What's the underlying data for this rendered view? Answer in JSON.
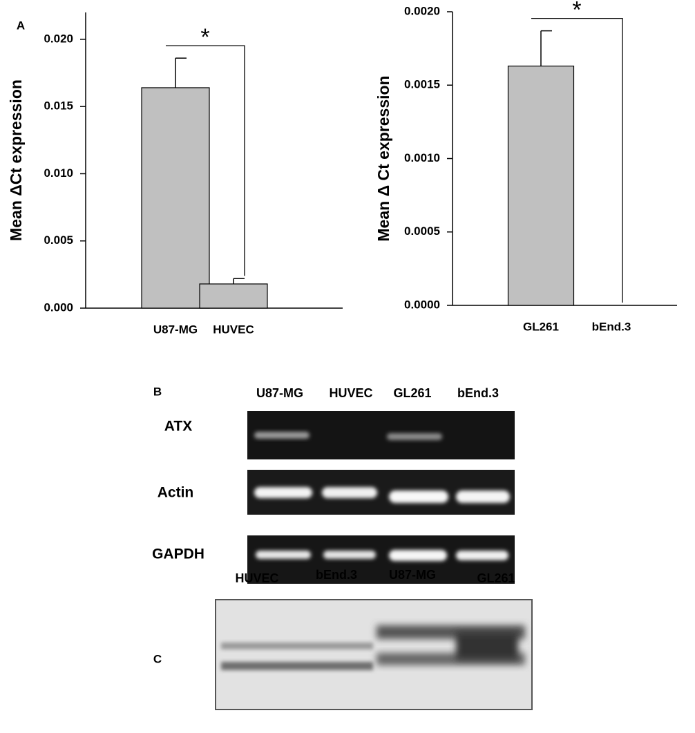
{
  "panel_labels": [
    "A",
    "B",
    "C"
  ],
  "chart_data": [
    {
      "type": "bar",
      "categories": [
        "U87-MG",
        "HUVEC"
      ],
      "values": [
        0.0164,
        0.0018
      ],
      "errors": [
        0.0022,
        0.0004
      ],
      "color": "#c0c0c0",
      "y_label": "Mean ΔCt expression",
      "annotation": "*",
      "ylim": [
        0,
        0.022
      ],
      "yticks": [
        {
          "value": 0,
          "label": "0.000"
        },
        0.005,
        {
          "value": 0.01,
          "label": "0.010"
        },
        0.015,
        {
          "value": 0.02,
          "label": "0.020"
        }
      ]
    },
    {
      "type": "bar",
      "categories": [
        "GL261",
        "bEnd.3"
      ],
      "values": [
        0.00163,
        0
      ],
      "errors": [
        0.00024,
        null
      ],
      "color": "#c0c0c0",
      "y_label": "Mean Δ Ct expression",
      "annotation": "*",
      "ylim": [
        0,
        0.002
      ],
      "yticks": [
        {
          "value": 0,
          "label": "0.0000"
        },
        {
          "value": 0.0005,
          "label": "0.0005"
        },
        {
          "value": 0.001,
          "label": "0.0010"
        },
        {
          "value": 0.0015,
          "label": "0.0015"
        },
        {
          "value": 0.002,
          "label": "0.0020"
        }
      ]
    }
  ],
  "gel_b": {
    "lanes": [
      "U87-MG",
      "HUVEC",
      "GL261",
      "bEnd.3"
    ],
    "rows": [
      "ATX",
      "Actin",
      "GAPDH"
    ]
  },
  "western_c": {
    "lanes": [
      "HUVEC",
      "bEnd.3",
      "U87-MG",
      "GL261"
    ]
  }
}
